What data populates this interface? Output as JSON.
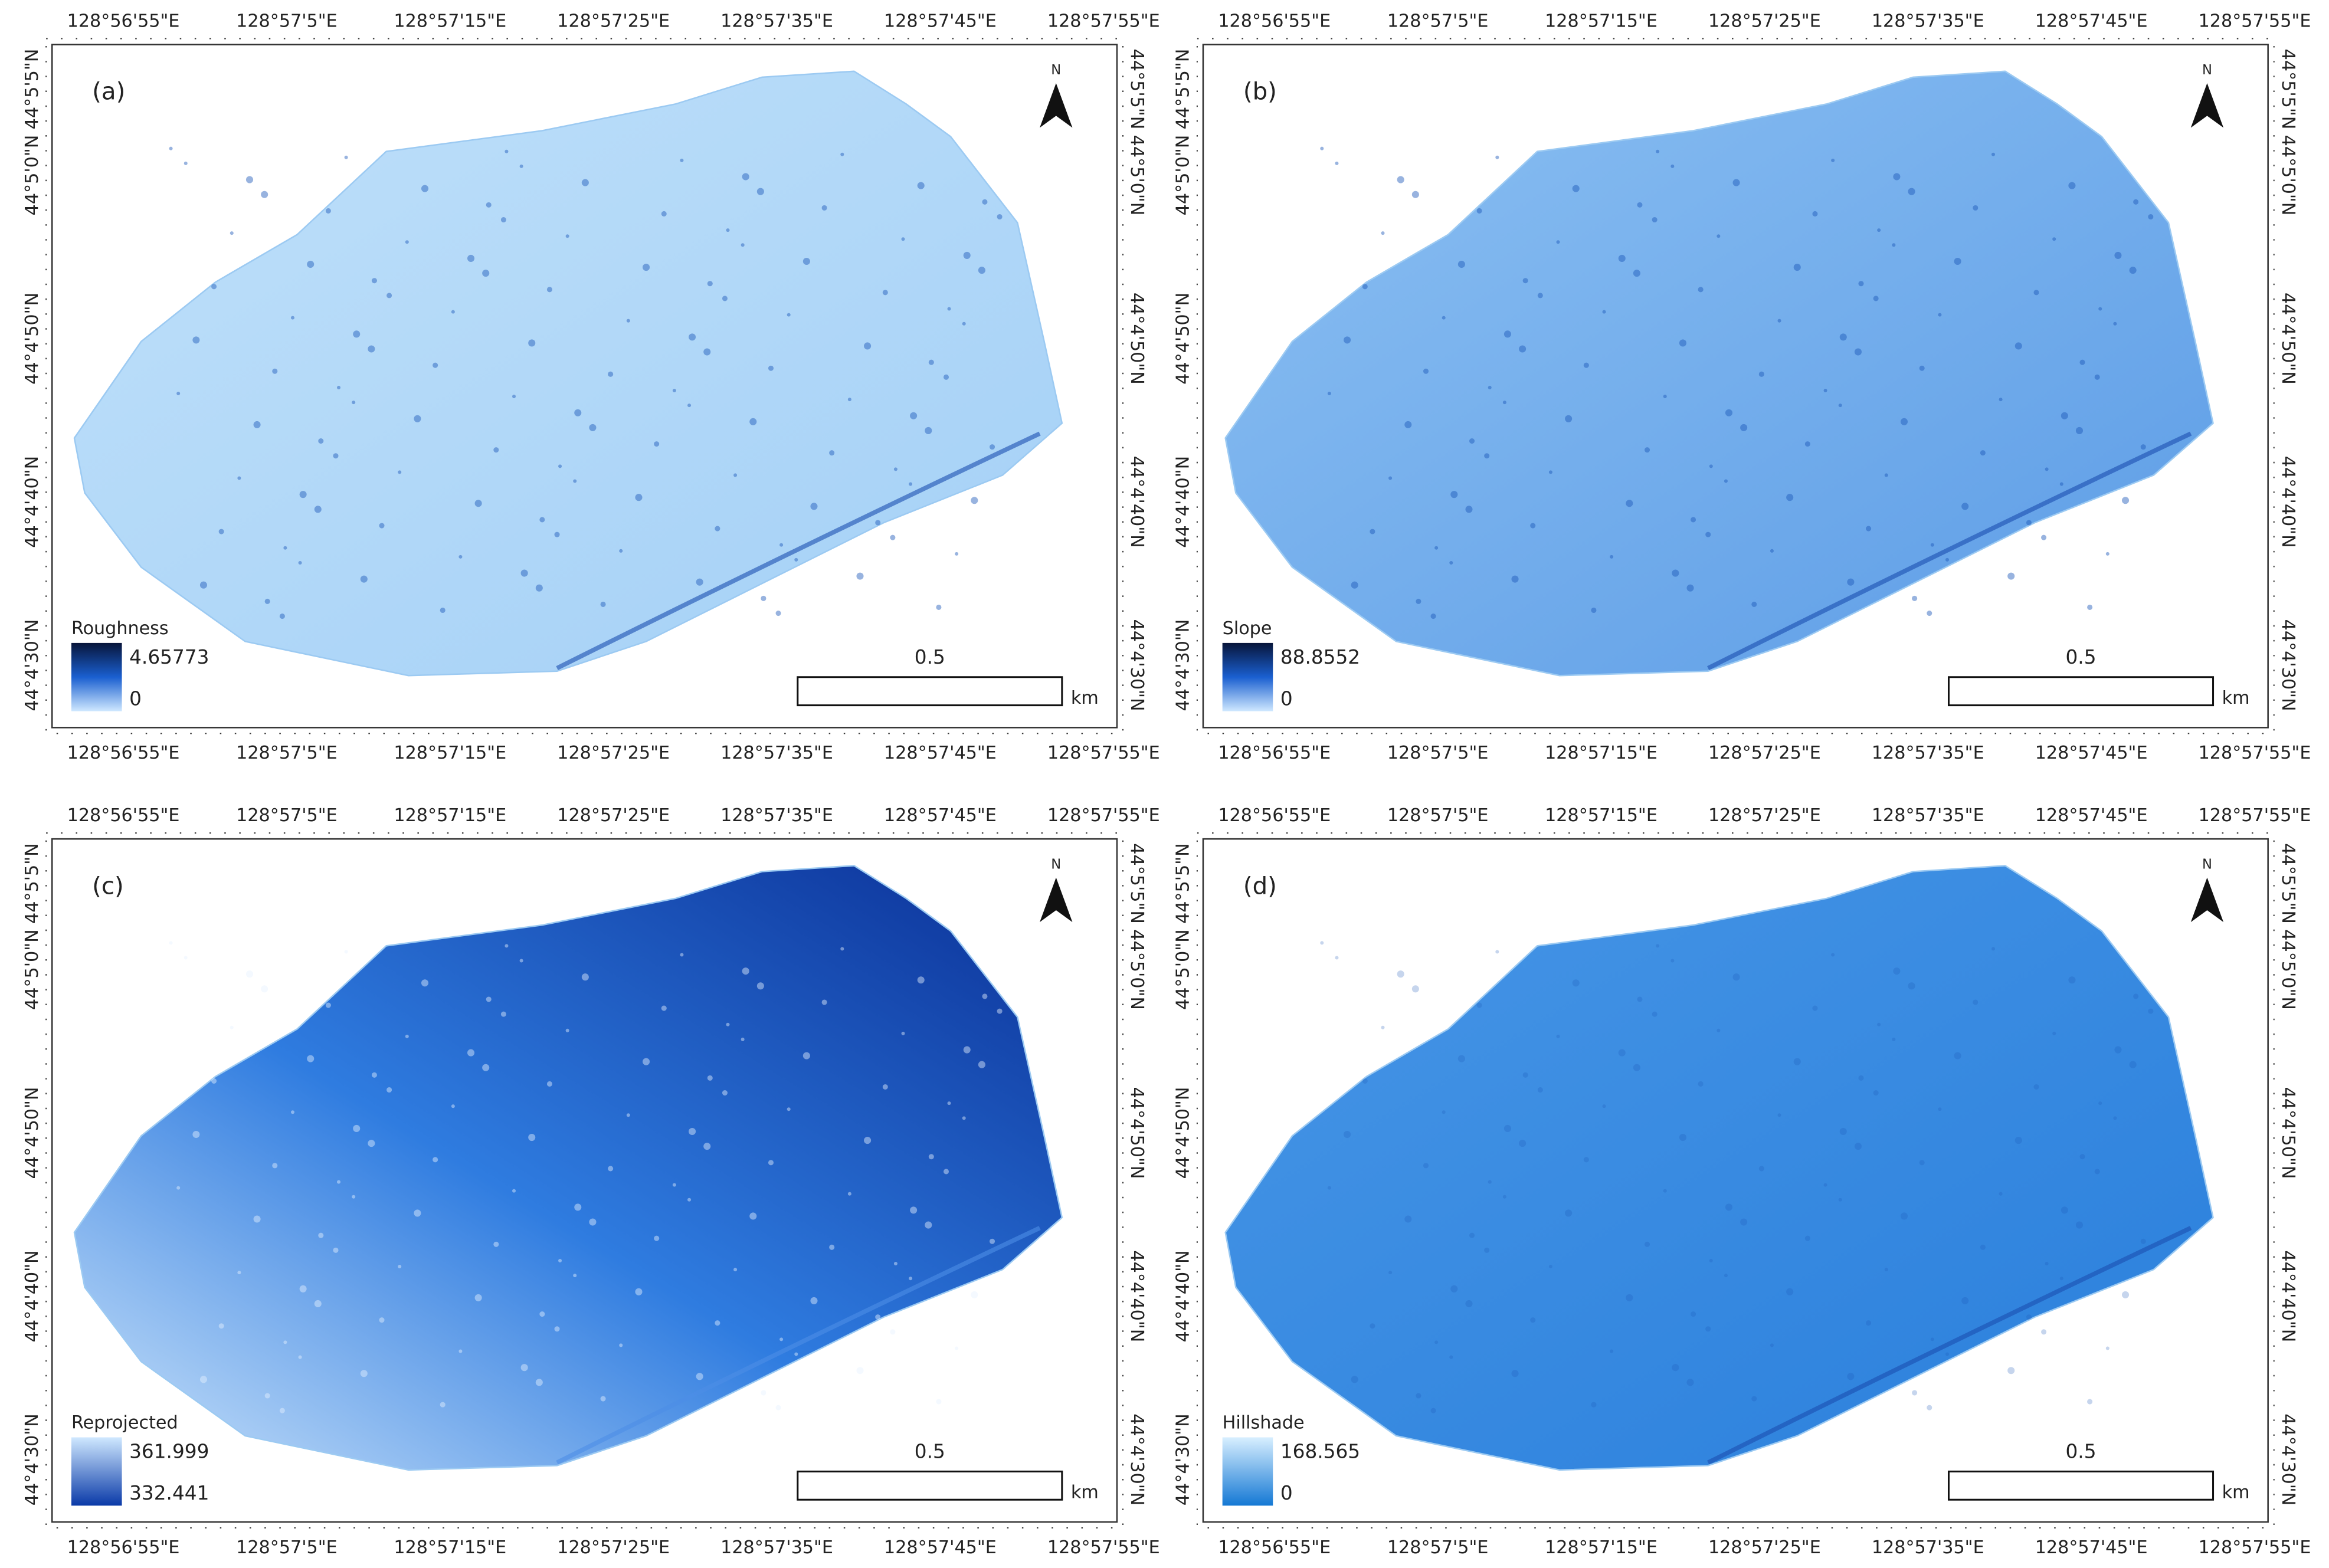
{
  "grid_labels": {
    "x": [
      "128°56'55\"E",
      "128°57'5\"E",
      "128°57'15\"E",
      "128°57'25\"E",
      "128°57'35\"E",
      "128°57'45\"E",
      "128°57'55\"E"
    ],
    "y": [
      "44°5'5\"N",
      "44°5'0\"N",
      "44°4'50\"N",
      "44°4'40\"N",
      "44°4'30\"N"
    ]
  },
  "panels": [
    {
      "label": "(a)",
      "legend": {
        "title": "Roughness",
        "max": "4.65773",
        "min": "0"
      },
      "scale_label": "0.5",
      "scale_unit": "km",
      "north": "N"
    },
    {
      "label": "(b)",
      "legend": {
        "title": "Slope",
        "max": "88.8552",
        "min": "0"
      },
      "scale_label": "0.5",
      "scale_unit": "km",
      "north": "N"
    },
    {
      "label": "(c)",
      "legend": {
        "title": "Reprojected",
        "max": "361.999",
        "min": "332.441"
      },
      "scale_label": "0.5",
      "scale_unit": "km",
      "north": "N"
    },
    {
      "label": "(d)",
      "legend": {
        "title": "Hillshade",
        "max": "168.565",
        "min": "0"
      },
      "scale_label": "0.5",
      "scale_unit": "km",
      "north": "N"
    }
  ]
}
